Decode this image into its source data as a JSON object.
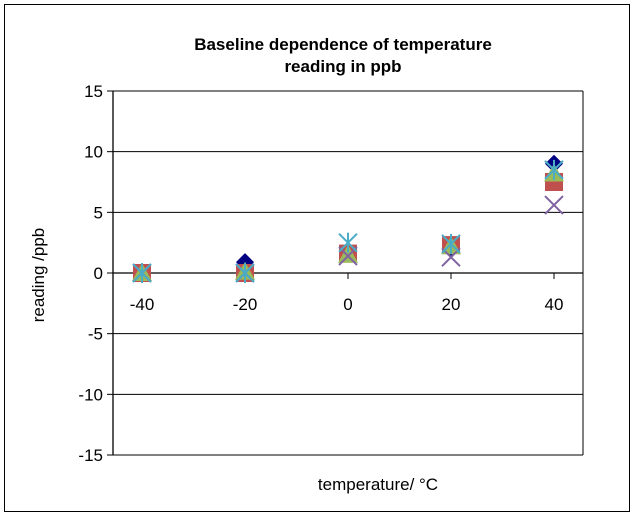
{
  "chart_data": {
    "type": "scatter",
    "title_lines": [
      "Baseline dependence of temperature",
      "reading in ppb"
    ],
    "xlabel": "temperature/ °C",
    "ylabel": "reading /ppb",
    "xlim": [
      -40,
      40
    ],
    "ylim": [
      -15,
      15
    ],
    "x_ticks": [
      -40,
      -20,
      0,
      20,
      40
    ],
    "y_ticks": [
      15,
      10,
      5,
      0,
      -5,
      -10,
      -15
    ],
    "grid": "horizontal",
    "legend": "none",
    "series": [
      {
        "marker": "diamond",
        "color": "#000080",
        "x": [
          -40,
          -20,
          0,
          20,
          40
        ],
        "y": [
          0,
          0.9,
          1.7,
          2.0,
          9.0
        ]
      },
      {
        "marker": "square",
        "color": "#c0504d",
        "x": [
          -40,
          -20,
          0,
          20,
          40
        ],
        "y": [
          0,
          0,
          1.6,
          2.3,
          7.5
        ]
      },
      {
        "marker": "triangle",
        "color": "#9bbb59",
        "x": [
          -40,
          -20,
          0,
          20,
          40
        ],
        "y": [
          0,
          0.1,
          1.5,
          2.2,
          8.2
        ]
      },
      {
        "marker": "x",
        "color": "#8064a2",
        "x": [
          -40,
          -20,
          0,
          20,
          40
        ],
        "y": [
          0,
          0,
          1.4,
          1.3,
          5.6
        ]
      },
      {
        "marker": "star",
        "color": "#4bacc6",
        "x": [
          -40,
          -20,
          0,
          20,
          40
        ],
        "y": [
          0,
          0,
          2.5,
          2.4,
          8.5
        ]
      }
    ]
  }
}
